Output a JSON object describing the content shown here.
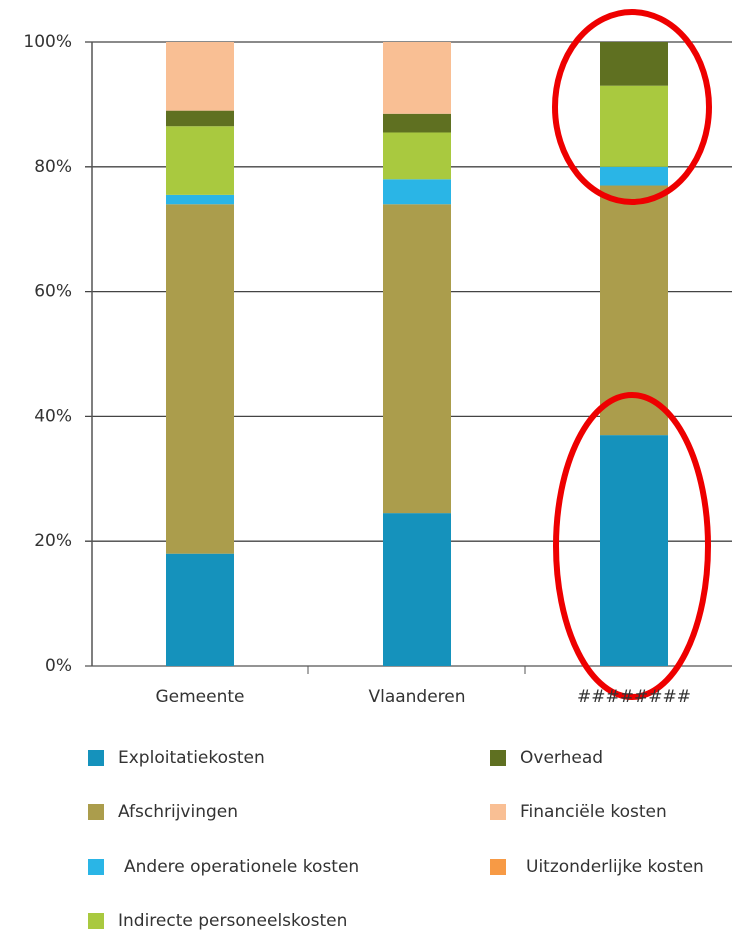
{
  "chart_data": {
    "type": "stacked_bar",
    "categories": [
      "Gemeente",
      "Vlaanderen",
      "########"
    ],
    "series": [
      {
        "name": "Exploitatiekosten",
        "color": "#1592bc",
        "values": [
          18,
          24.5,
          37
        ]
      },
      {
        "name": "Afschrijvingen",
        "color": "#ab9d4c",
        "values": [
          56,
          49.5,
          40
        ]
      },
      {
        "name": "Andere operationele kosten",
        "color": "#2ab5e6",
        "values": [
          1.5,
          4,
          3
        ]
      },
      {
        "name": "Indirecte personeelskosten",
        "color": "#a9c93f",
        "values": [
          11,
          7.5,
          13
        ]
      },
      {
        "name": "Overhead",
        "color": "#5f7021",
        "values": [
          2.5,
          3,
          7
        ]
      },
      {
        "name": "Financiële kosten",
        "color": "#f9bf94",
        "values": [
          11,
          11.5,
          0
        ]
      },
      {
        "name": "Uitzonderlijke kosten",
        "color": "#f79a45",
        "values": [
          0,
          0,
          0
        ]
      }
    ],
    "ylim": [
      0,
      100
    ],
    "yticks": [
      {
        "value": 0,
        "label": "0%"
      },
      {
        "value": 20,
        "label": "20%"
      },
      {
        "value": 40,
        "label": "40%"
      },
      {
        "value": 60,
        "label": "60%"
      },
      {
        "value": 80,
        "label": "80%"
      },
      {
        "value": 100,
        "label": "100%"
      }
    ],
    "grid": true
  }
}
